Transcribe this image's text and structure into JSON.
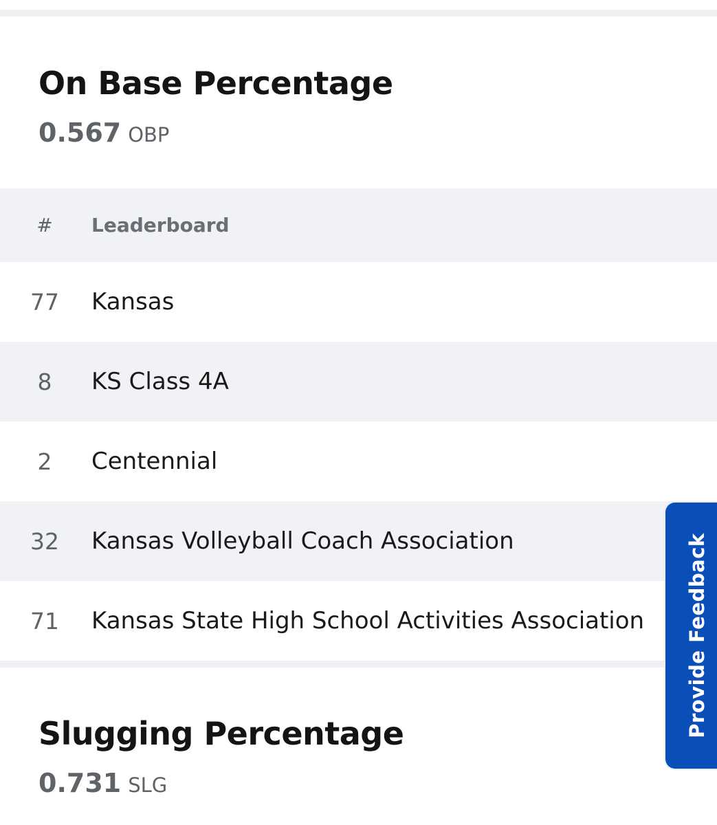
{
  "obp": {
    "title": "On Base Percentage",
    "value": "0.567",
    "unit": "OBP"
  },
  "leaderboard": {
    "headers": {
      "rank": "#",
      "name": "Leaderboard"
    },
    "rows": [
      {
        "rank": "77",
        "name": "Kansas"
      },
      {
        "rank": "8",
        "name": "KS Class 4A"
      },
      {
        "rank": "2",
        "name": "Centennial"
      },
      {
        "rank": "32",
        "name": "Kansas Volleyball Coach Association"
      },
      {
        "rank": "71",
        "name": "Kansas State High School Activities Association"
      }
    ]
  },
  "slg": {
    "title": "Slugging Percentage",
    "value": "0.731",
    "unit": "SLG"
  },
  "feedback": {
    "label": "Provide Feedback",
    "color": "#0a4fb8"
  }
}
